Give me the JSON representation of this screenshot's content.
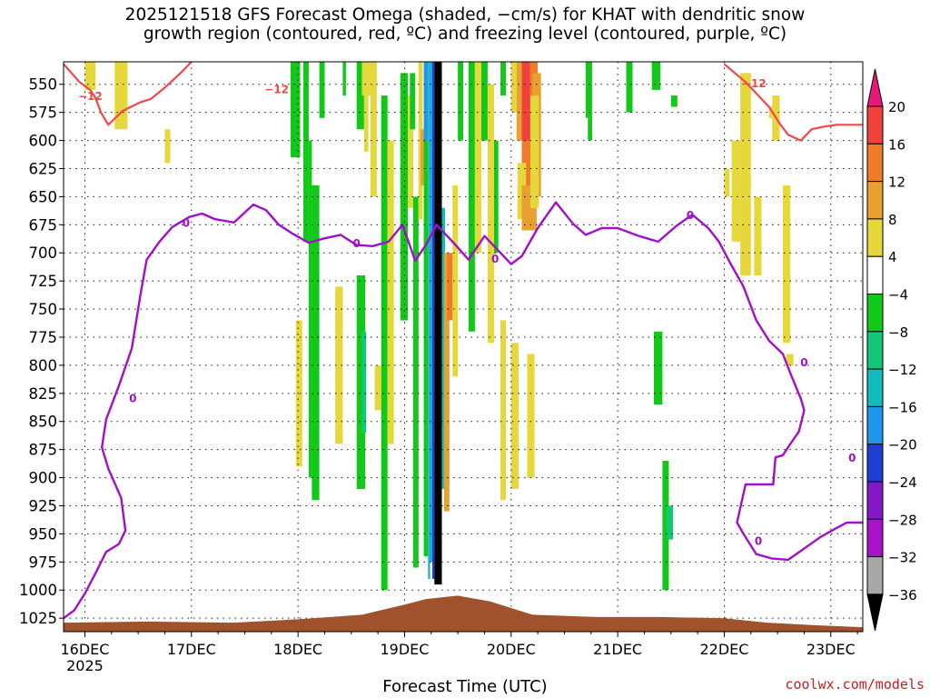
{
  "title_line1": "2025121518 GFS Forecast Omega (shaded, −cm/s) for KHAT with dendritic snow",
  "title_line2": "growth region (contoured, red, ºC) and freezing level (contoured, purple, ºC)",
  "credit": "coolwx.com/models",
  "chart_data": {
    "type": "heatmap",
    "xlabel": "Forecast Time (UTC)",
    "ylabel": "",
    "x_ticks": [
      "16DEC",
      "17DEC",
      "18DEC",
      "19DEC",
      "20DEC",
      "21DEC",
      "22DEC",
      "23DEC"
    ],
    "x_year_label": "2025",
    "x_range_days": [
      15.8,
      23.3
    ],
    "y_ticks": [
      550,
      575,
      600,
      625,
      650,
      675,
      700,
      725,
      750,
      775,
      800,
      825,
      850,
      875,
      900,
      925,
      950,
      975,
      1000,
      1025
    ],
    "y_range_hpa": [
      530,
      1037
    ],
    "y_reversed": true,
    "grid": true,
    "colorbar": {
      "labels": [
        "20",
        "16",
        "12",
        "8",
        "4",
        "−4",
        "−8",
        "−12",
        "−16",
        "−20",
        "−24",
        "−28",
        "−32",
        "−36"
      ],
      "colors": [
        "#e8187a",
        "#f0423a",
        "#ef7a28",
        "#e8a030",
        "#e6d83a",
        "#ffffff",
        "#12c818",
        "#12c878",
        "#12bcbc",
        "#1e96ea",
        "#1e3ed2",
        "#8218c8",
        "#a812c8",
        "#a8a8a8",
        "#000000"
      ]
    },
    "freezing_level": {
      "label": "0",
      "color": "#a010c8",
      "points": [
        [
          15.8,
          1025
        ],
        [
          15.9,
          1018
        ],
        [
          16.0,
          1003
        ],
        [
          16.1,
          985
        ],
        [
          16.2,
          966
        ],
        [
          16.32,
          959
        ],
        [
          16.38,
          947
        ],
        [
          16.34,
          918
        ],
        [
          16.22,
          892
        ],
        [
          16.16,
          873
        ],
        [
          16.2,
          848
        ],
        [
          16.32,
          818
        ],
        [
          16.44,
          785
        ],
        [
          16.52,
          738
        ],
        [
          16.58,
          706
        ],
        [
          16.7,
          690
        ],
        [
          16.82,
          677
        ],
        [
          16.98,
          668
        ],
        [
          17.1,
          665
        ],
        [
          17.22,
          670
        ],
        [
          17.4,
          673
        ],
        [
          17.58,
          657
        ],
        [
          17.7,
          662
        ],
        [
          17.82,
          675
        ],
        [
          17.95,
          683
        ],
        [
          18.1,
          691
        ],
        [
          18.25,
          687
        ],
        [
          18.4,
          684
        ],
        [
          18.55,
          693
        ],
        [
          18.7,
          694
        ],
        [
          18.85,
          690
        ],
        [
          18.98,
          675
        ],
        [
          19.1,
          707
        ],
        [
          19.2,
          693
        ],
        [
          19.3,
          675
        ],
        [
          19.45,
          690
        ],
        [
          19.6,
          706
        ],
        [
          19.75,
          685
        ],
        [
          19.9,
          700
        ],
        [
          20.0,
          710
        ],
        [
          20.1,
          703
        ],
        [
          20.25,
          678
        ],
        [
          20.42,
          655
        ],
        [
          20.58,
          674
        ],
        [
          20.7,
          684
        ],
        [
          20.85,
          678
        ],
        [
          21.0,
          678
        ],
        [
          21.2,
          685
        ],
        [
          21.38,
          690
        ],
        [
          21.55,
          676
        ],
        [
          21.7,
          666
        ],
        [
          21.85,
          678
        ],
        [
          21.95,
          690
        ],
        [
          22.05,
          708
        ],
        [
          22.18,
          730
        ],
        [
          22.3,
          760
        ],
        [
          22.42,
          778
        ],
        [
          22.55,
          790
        ],
        [
          22.62,
          807
        ],
        [
          22.72,
          830
        ],
        [
          22.75,
          840
        ],
        [
          22.7,
          859
        ],
        [
          22.62,
          870
        ],
        [
          22.55,
          880
        ],
        [
          22.48,
          882
        ],
        [
          22.46,
          906
        ],
        [
          22.2,
          906
        ],
        [
          22.12,
          940
        ],
        [
          22.18,
          950
        ],
        [
          22.3,
          968
        ],
        [
          22.45,
          972
        ],
        [
          22.6,
          973
        ],
        [
          22.75,
          963
        ],
        [
          22.9,
          953
        ],
        [
          23.05,
          945
        ],
        [
          23.15,
          940
        ],
        [
          23.3,
          940
        ]
      ]
    },
    "dgz_contour": {
      "label": "−12",
      "color": "#f04848",
      "points": [
        [
          15.8,
          532
        ],
        [
          15.95,
          548
        ],
        [
          16.05,
          555
        ],
        [
          16.1,
          562
        ],
        [
          16.15,
          575
        ],
        [
          16.22,
          586
        ],
        [
          16.35,
          574
        ],
        [
          16.52,
          566
        ],
        [
          16.62,
          563
        ],
        [
          16.75,
          553
        ],
        [
          16.92,
          538
        ],
        [
          17.0,
          530
        ]
      ]
    },
    "dgz_contour_right": {
      "color": "#f04848",
      "points": [
        [
          22.0,
          532
        ],
        [
          22.2,
          548
        ],
        [
          22.42,
          570
        ],
        [
          22.52,
          585
        ],
        [
          22.6,
          595
        ],
        [
          22.72,
          600
        ],
        [
          22.82,
          590
        ],
        [
          22.92,
          588
        ],
        [
          23.05,
          586
        ],
        [
          23.3,
          586
        ]
      ]
    },
    "surface": {
      "color": "#a0522d",
      "points": [
        [
          15.8,
          1029
        ],
        [
          16.6,
          1028
        ],
        [
          17.4,
          1029
        ],
        [
          18.0,
          1026
        ],
        [
          18.6,
          1022
        ],
        [
          19.0,
          1013
        ],
        [
          19.2,
          1008
        ],
        [
          19.5,
          1005
        ],
        [
          19.8,
          1010
        ],
        [
          20.2,
          1022
        ],
        [
          20.8,
          1024
        ],
        [
          21.4,
          1024
        ],
        [
          22.0,
          1025
        ],
        [
          22.4,
          1029
        ],
        [
          22.8,
          1031
        ],
        [
          23.3,
          1033
        ]
      ]
    }
  }
}
